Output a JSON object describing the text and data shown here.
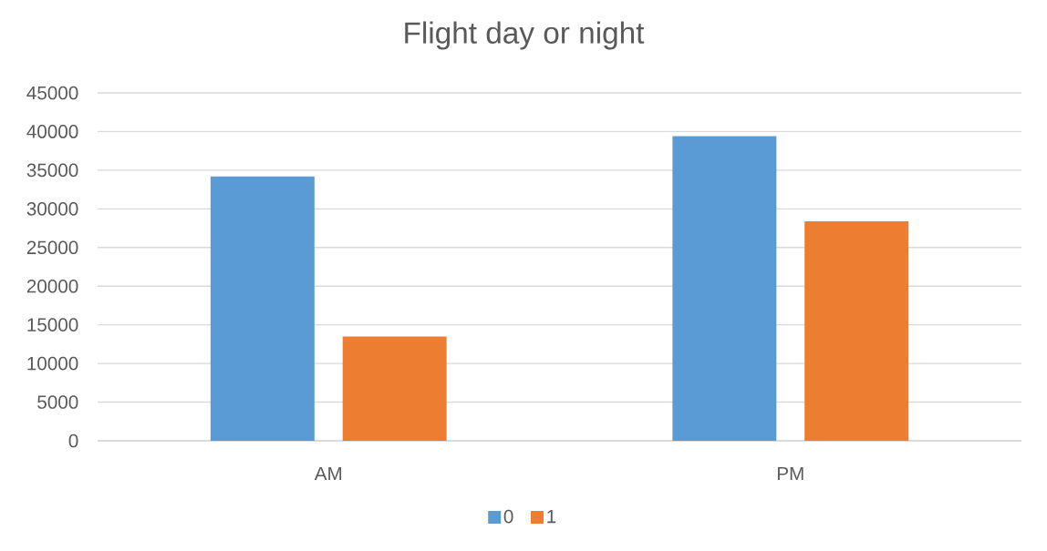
{
  "chart_data": {
    "type": "bar",
    "title": "Flight day or night",
    "categories": [
      "AM",
      "PM"
    ],
    "series": [
      {
        "name": "0",
        "color": "#5b9bd5",
        "values": [
          34200,
          39400
        ]
      },
      {
        "name": "1",
        "color": "#ed7d31",
        "values": [
          13500,
          28400
        ]
      }
    ],
    "ylim": [
      0,
      45000
    ],
    "yticks": [
      0,
      5000,
      10000,
      15000,
      20000,
      25000,
      30000,
      35000,
      40000,
      45000
    ],
    "grid": "y",
    "legend": "bottom"
  }
}
